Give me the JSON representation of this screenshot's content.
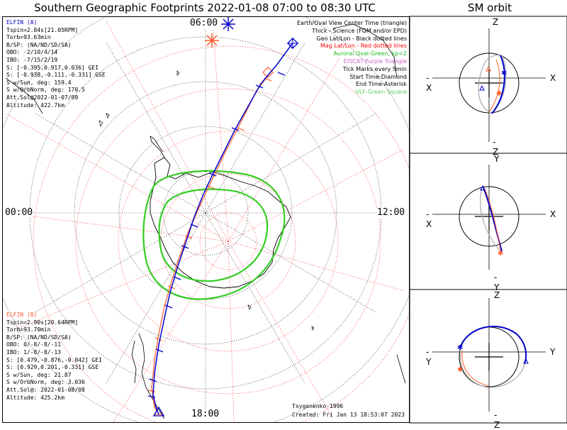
{
  "title": "Southern Geographic Footprints 2022-01-08 07:00 to 08:30 UTC",
  "sm_title": "SM orbit",
  "time_labels": {
    "top": "06:00",
    "left": "00:00",
    "right": "12:00",
    "bottom": "18:00"
  },
  "elfin_a": {
    "header": "ELFIN (A)",
    "color": "#0000cc",
    "lines": [
      "Tspin=2.84s[21.05RPM]",
      "Torb=93.63min",
      "B/SP: (NA/ND/SD/SA)",
      "OBO: -2/10/4/14",
      "IBO: -7/15/2/19",
      "S: [-0.395,0.917,0.036] GEI",
      "S: [-0.938,-0.111,-0.331] GSE",
      "S w/Sun, deg: 159.4",
      "S w/OrbNorm, deg: 170.5",
      "Att.Sol@2022-01-07/09",
      "Altitude: 422.7km"
    ]
  },
  "elfin_b": {
    "header": "ELFIN (B)",
    "color": "#ff5a2a",
    "lines": [
      "Tspin=2.90s[20.64RPM]",
      "Torb=93.70min",
      "B/SP: (NA/ND/SD/SA)",
      "OBO: 0/-8/-8/-11",
      "IBO: 1/-8/-8/-13",
      "S: [0.479,-0.876,-0.042] GEI",
      "S: [0.929,0.201,-0.331] GSE",
      "S w/Sun, deg: 21.87",
      "S w/OrbNorm, deg: 3.036",
      "Att.Sol@: 2022-01-08/08",
      "Altitude: 425.2km"
    ]
  },
  "legend": [
    {
      "text": "Earth/Oval View Center Time (triangle)",
      "color": "#000000"
    },
    {
      "text": "Thick - Science (FGM and/or EPD)",
      "color": "#000000"
    },
    {
      "text": "Geo Lat/Lon - Black dotted lines",
      "color": "#000000"
    },
    {
      "text": "Mag Lat/Lon - Red dotted lines",
      "color": "#ff0000"
    },
    {
      "text": "Auroral Oval-Green, kp=2",
      "color": "#22bb22"
    },
    {
      "text": "EISCAT-Purple Triangle",
      "color": "#cc66cc"
    },
    {
      "text": "Tick Marks every 5min",
      "color": "#000000"
    },
    {
      "text": "Start Time-Diamond",
      "color": "#000000"
    },
    {
      "text": "End Time-Asterisk",
      "color": "#000000"
    },
    {
      "text": "VLF-Green Square",
      "color": "#66cc66"
    }
  ],
  "footer": {
    "credit": "Tsyganenko-1996",
    "created": "Created: Fri Jan 13 18:53:07 2023"
  },
  "sm_panels": [
    {
      "top": "Z",
      "bottom": "-Z",
      "left": "-X",
      "right": "X"
    },
    {
      "top": "Y",
      "bottom": "-Y",
      "left": "-X",
      "right": "X"
    },
    {
      "top": "Z",
      "bottom": "-Z",
      "left": "-Y",
      "right": "Y"
    }
  ],
  "colors": {
    "elfin_a": "#0000cc",
    "elfin_b": "#ff5a2a",
    "oval": "#33cc22",
    "mag_grid": "#ff0000",
    "geo_grid": "#000000"
  }
}
